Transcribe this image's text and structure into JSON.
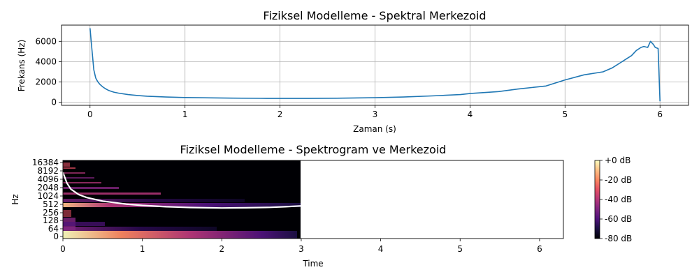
{
  "chart_data": [
    {
      "type": "line",
      "title": "Fiziksel Modelleme - Spektral Merkezoid",
      "xlabel": "Zaman (s)",
      "ylabel": "Frekans (Hz)",
      "xlim": [
        -0.3,
        6.3
      ],
      "ylim": [
        -300,
        7600
      ],
      "xticks": [
        0,
        1,
        2,
        3,
        4,
        5,
        6
      ],
      "yticks": [
        0,
        2000,
        4000,
        6000
      ],
      "grid": true,
      "line_color": "#1f77b4",
      "series": [
        {
          "x": [
            0,
            0.02,
            0.04,
            0.06,
            0.08,
            0.1,
            0.13,
            0.16,
            0.2,
            0.25,
            0.3,
            0.4,
            0.5,
            0.6,
            0.8,
            1.0,
            1.2,
            1.5,
            1.8,
            2.0,
            2.3,
            2.6,
            3.0,
            3.3,
            3.6,
            3.9,
            4.0,
            4.3,
            4.5,
            4.8,
            5.0,
            5.2,
            5.4,
            5.5,
            5.6,
            5.7,
            5.75,
            5.8,
            5.83,
            5.87,
            5.9,
            5.93,
            5.95,
            5.98,
            6.0
          ],
          "values": [
            7300,
            5200,
            3200,
            2400,
            2050,
            1800,
            1550,
            1350,
            1150,
            1000,
            900,
            760,
            670,
            600,
            520,
            470,
            440,
            410,
            390,
            380,
            380,
            400,
            450,
            520,
            630,
            760,
            860,
            1050,
            1300,
            1600,
            2200,
            2700,
            3000,
            3400,
            4000,
            4600,
            5100,
            5400,
            5500,
            5400,
            6000,
            5700,
            5400,
            5300,
            100
          ]
        }
      ]
    },
    {
      "type": "heatmap",
      "title": "Fiziksel Modelleme - Spektrogram ve Merkezoid",
      "xlabel": "Time",
      "ylabel": "Hz",
      "xlim": [
        0,
        6.3
      ],
      "xticks": [
        0,
        1,
        2,
        3,
        4,
        5,
        6
      ],
      "yticks": [
        0,
        64,
        128,
        256,
        512,
        1024,
        2048,
        4096,
        8192,
        16384
      ],
      "spectrogram_end_time": 3.0,
      "colorbar_ticks": [
        "+0 dB",
        "-20 dB",
        "-40 dB",
        "-60 dB",
        "-80 dB"
      ],
      "colorbar_range_db": [
        -80,
        0
      ],
      "centroid_color": "#ffffff",
      "centroid_series": {
        "x": [
          0,
          0.05,
          0.1,
          0.2,
          0.3,
          0.5,
          0.8,
          1.0,
          1.3,
          1.6,
          2.0,
          2.3,
          2.6,
          2.8,
          3.0
        ],
        "values": [
          7300,
          3000,
          1800,
          1150,
          900,
          670,
          520,
          470,
          420,
          395,
          380,
          385,
          400,
          420,
          450
        ]
      }
    }
  ]
}
